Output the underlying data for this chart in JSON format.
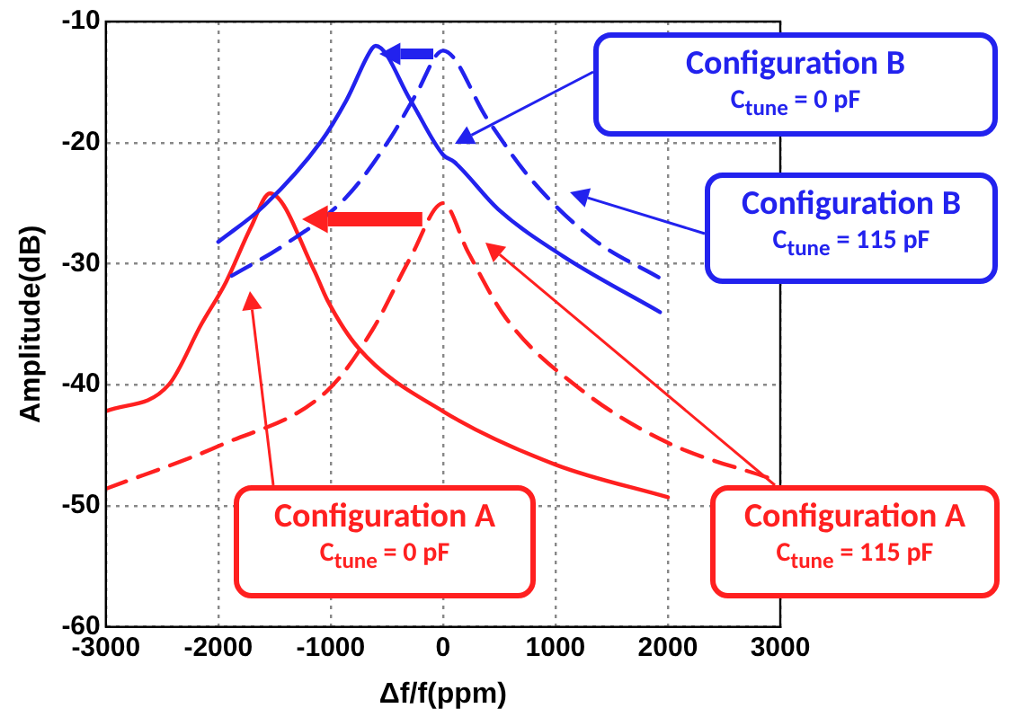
{
  "chart_data": {
    "type": "line",
    "xlabel": "Δf/f(ppm)",
    "ylabel": "Amplitude(dB)",
    "xlim": [
      -3000,
      3000
    ],
    "xticks": [
      -3000,
      -2000,
      -1000,
      0,
      1000,
      2000,
      3000
    ],
    "ylim": [
      -60,
      -10
    ],
    "yticks": [
      -60,
      -50,
      -40,
      -30,
      -20,
      -10
    ],
    "grid": true,
    "legend": false,
    "marker": "none",
    "series": [
      {
        "color": "#2222ee",
        "line_style": "solid",
        "x": [
          -2000,
          -1590,
          -1085,
          -860,
          -630,
          -600,
          -290,
          0,
          100,
          490,
          1070,
          1930
        ],
        "values": [
          -28.2,
          -25.2,
          -19.9,
          -16.5,
          -12.2,
          -12,
          -16.5,
          -21,
          -21.6,
          -25.5,
          -29.4,
          -34
        ]
      },
      {
        "color": "#2222ee",
        "line_style": "dashed",
        "x": [
          -1880,
          -1420,
          -860,
          -460,
          -240,
          0,
          390,
          780,
          1340,
          1930
        ],
        "values": [
          -31,
          -28.5,
          -24.5,
          -19.5,
          -16,
          -12.4,
          -18,
          -23,
          -28,
          -31.2
        ]
      },
      {
        "color": "#ff2020",
        "line_style": "solid",
        "x": [
          -3000,
          -2440,
          -2150,
          -1930,
          -1710,
          -1540,
          -1150,
          -1030,
          -750,
          0,
          1000,
          2000
        ],
        "values": [
          -42.2,
          -40,
          -35,
          -31.5,
          -27,
          -24.2,
          -30.5,
          -33,
          -37,
          -42.2,
          -46.6,
          -49.3
        ]
      },
      {
        "color": "#ff2020",
        "line_style": "dashed",
        "x": [
          -3000,
          -1980,
          -1030,
          -630,
          -290,
          0,
          220,
          560,
          1240,
          2000,
          2930
        ],
        "values": [
          -48.6,
          -45,
          -40.5,
          -35.5,
          -29.5,
          -25,
          -29,
          -34.5,
          -40.5,
          -44.8,
          -47.8
        ]
      }
    ],
    "annotations": [
      "Configuration B\nC$_{tune}$ = 0 pF",
      "Configuration B\nC$_{tune}$ = 115 pF",
      "Configuration A\nC$_{tune}$ = 0 pF",
      "Configuration A\nC$_{tune}$ = 115 pF"
    ]
  }
}
